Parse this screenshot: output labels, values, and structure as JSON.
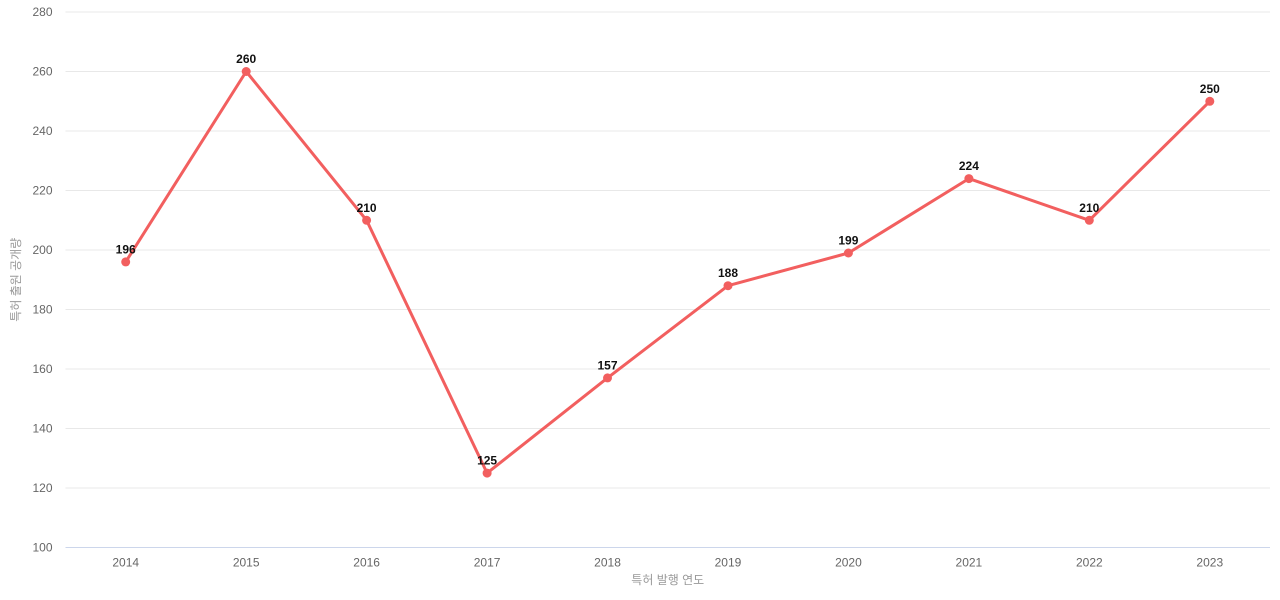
{
  "chart_data": {
    "type": "line",
    "title": "",
    "xlabel": "특허 발행 연도",
    "ylabel": "특허 출원 공개량",
    "categories": [
      "2014",
      "2015",
      "2016",
      "2017",
      "2018",
      "2019",
      "2020",
      "2021",
      "2022",
      "2023"
    ],
    "values": [
      196,
      260,
      210,
      125,
      157,
      188,
      199,
      224,
      210,
      250
    ],
    "yticks": [
      100,
      120,
      140,
      160,
      180,
      200,
      220,
      240,
      260,
      280
    ],
    "ylim": [
      100,
      280
    ],
    "grid": "horizontal-only",
    "legend": "none",
    "show_data_labels": true,
    "colors": {
      "line": "#f25f5f",
      "marker": "#f25f5f",
      "data_label": "#111111",
      "tick_label": "#666666",
      "axis_title": "#999999",
      "gridline": "#e8e8e8",
      "axis_line": "#ccd6eb",
      "background": "#ffffff"
    }
  }
}
